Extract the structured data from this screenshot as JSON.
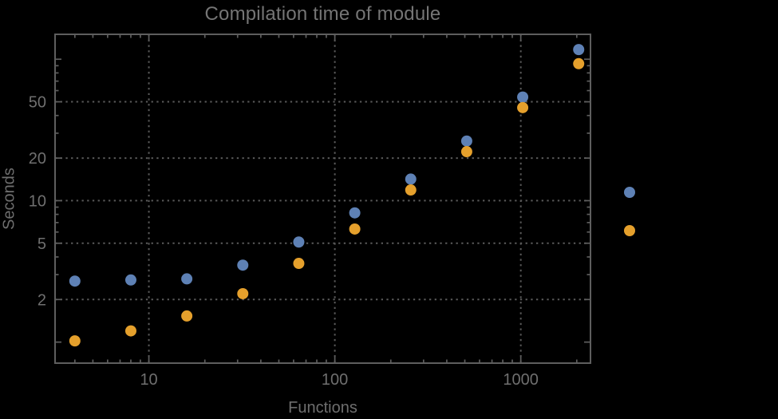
{
  "chart_data": {
    "type": "scatter",
    "title": "Compilation time of module",
    "xlabel": "Functions",
    "ylabel": "Seconds",
    "x_scale": "log",
    "y_scale": "log",
    "x_range": [
      3.13,
      2370
    ],
    "y_range": [
      0.71,
      150
    ],
    "grid": "dotted-at-labeled-ticks",
    "x": [
      4,
      8,
      16,
      32,
      64,
      128,
      256,
      512,
      1024,
      2048
    ],
    "series": [
      {
        "name": "series-1-blue",
        "color": "#5E81B5",
        "values": [
          2.7,
          2.75,
          2.8,
          3.5,
          5.1,
          8.2,
          14.2,
          26.4,
          54,
          117
        ]
      },
      {
        "name": "series-2-orange",
        "color": "#E5A02C",
        "values": [
          1.02,
          1.2,
          1.53,
          2.2,
          3.6,
          6.3,
          11.9,
          22.2,
          45.5,
          93
        ]
      }
    ],
    "x_ticks": [
      {
        "value": 10,
        "label": "10"
      },
      {
        "value": 100,
        "label": "100"
      },
      {
        "value": 1000,
        "label": "1000"
      }
    ],
    "y_ticks": [
      {
        "value": 2,
        "label": "2"
      },
      {
        "value": 5,
        "label": "5"
      },
      {
        "value": 10,
        "label": "10"
      },
      {
        "value": 20,
        "label": "20"
      },
      {
        "value": 50,
        "label": "50"
      }
    ],
    "y_ticks_unlabeled": [
      1,
      100
    ],
    "legend_position": "right"
  },
  "legend": {
    "markers": [
      {
        "label": "",
        "color": "#5E81B5"
      },
      {
        "label": "",
        "color": "#E5A02C"
      }
    ]
  },
  "colors": {
    "background": "#000000",
    "frame": "#5e5e5e",
    "grid": "#5a5a5a",
    "tick_label": "#6f6f6f",
    "axis_label": "#6e6e6e",
    "title": "#757575"
  }
}
